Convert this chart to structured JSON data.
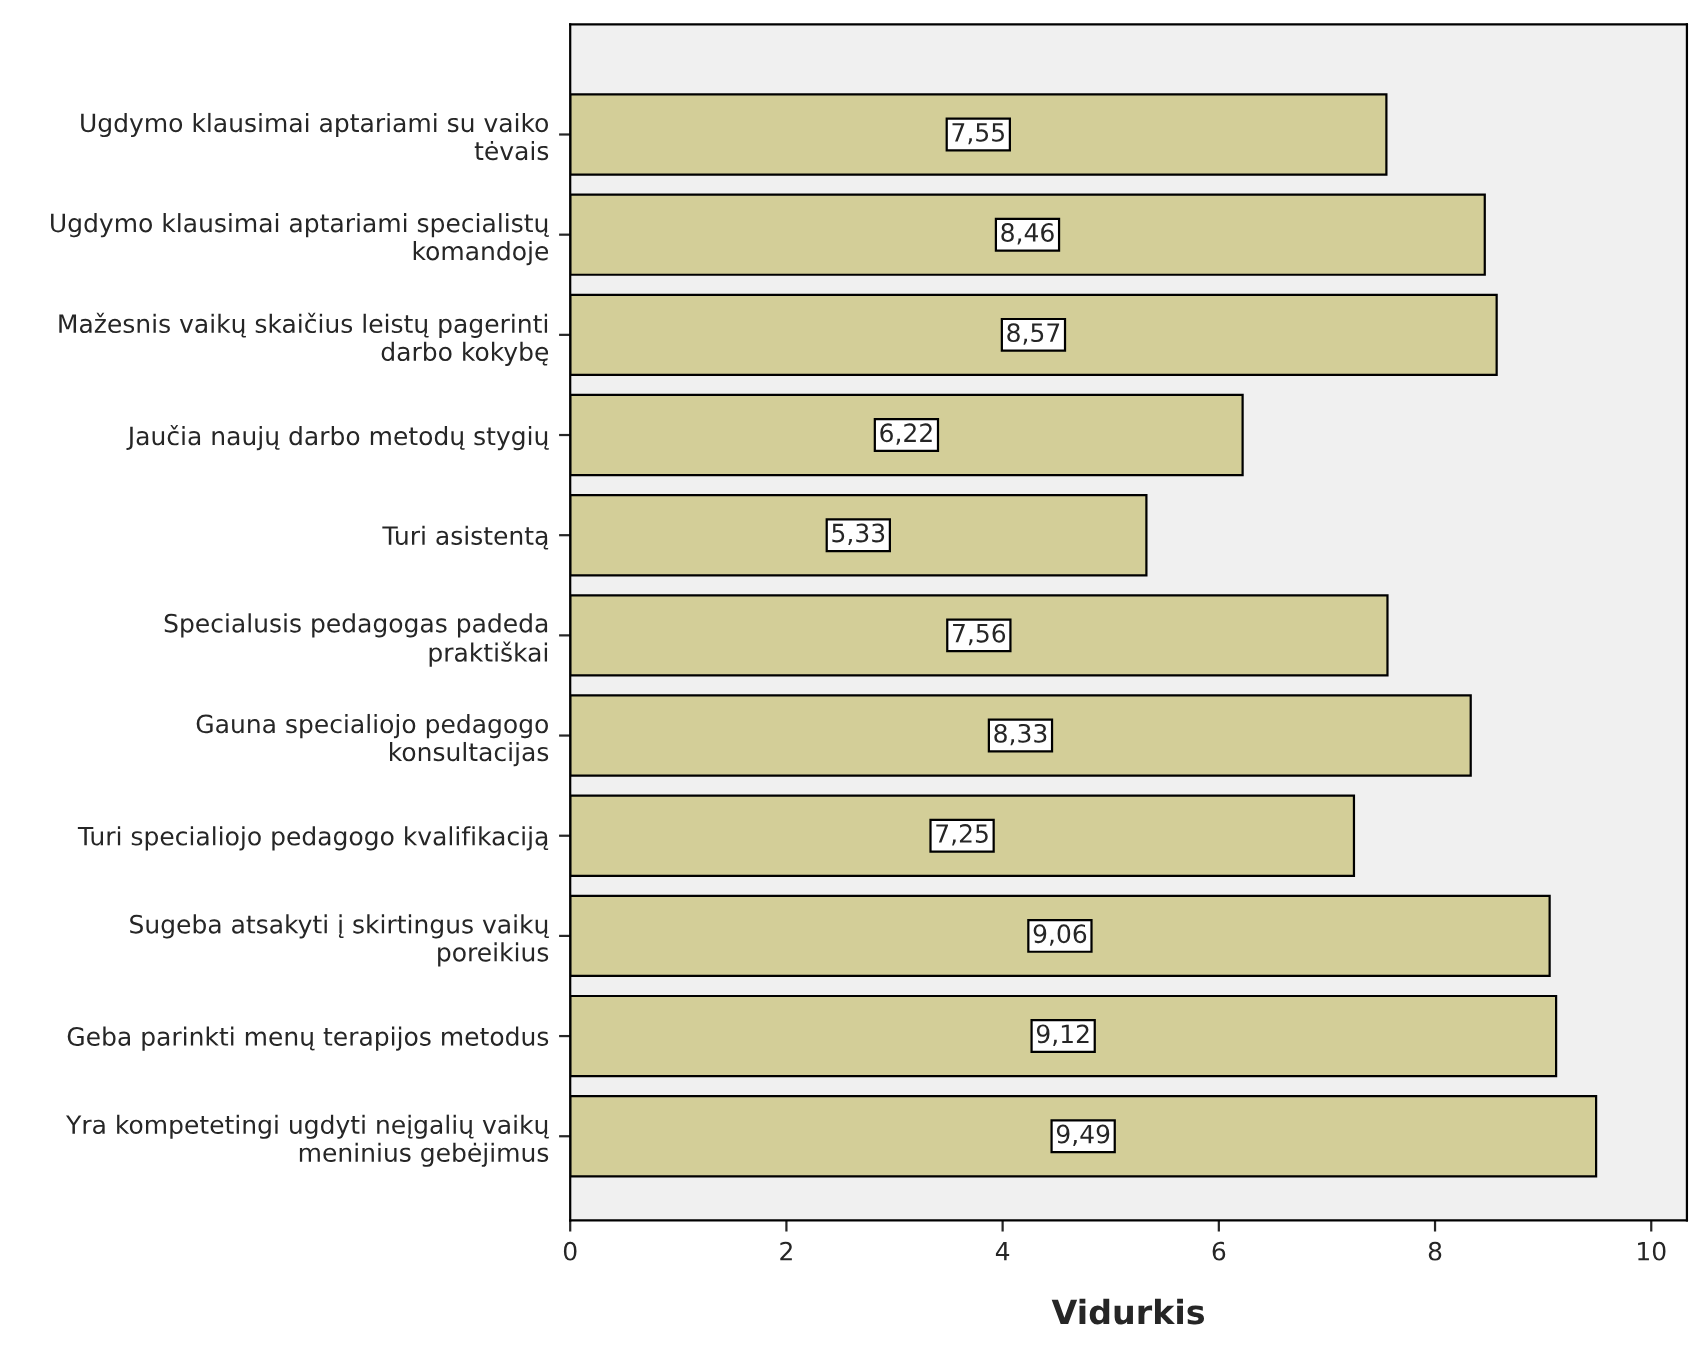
{
  "chart_data": {
    "type": "bar",
    "orientation": "horizontal",
    "xlabel": "Vidurkis",
    "categories": [
      "Ugdymo klausimai aptariami su vaiko\ntėvais",
      "Ugdymo klausimai aptariami specialistų\nkomandoje",
      "Mažesnis vaikų skaičius leistų pagerinti\ndarbo kokybę",
      "Jaučia naujų darbo metodų stygių",
      "Turi asistentą",
      "Specialusis pedagogas padeda\npraktiškai",
      "Gauna specialiojo pedagogo\nkonsultacijas",
      "Turi specialiojo pedagogo kvalifikaciją",
      "Sugeba atsakyti į skirtingus vaikų\nporeikius",
      "Geba parinkti menų terapijos metodus",
      "Yra kompetetingi ugdyti neįgalių vaikų\nmeninius gebėjimus"
    ],
    "values": [
      7.55,
      8.46,
      8.57,
      6.22,
      5.33,
      7.56,
      8.33,
      7.25,
      9.06,
      9.12,
      9.49
    ],
    "value_labels": [
      "7,55",
      "8,46",
      "8,57",
      "6,22",
      "5,33",
      "7,56",
      "8,33",
      "7,25",
      "9,06",
      "9,12",
      "9,49"
    ],
    "color": "#d3ce98",
    "xlim": [
      0,
      10.33
    ],
    "xticks": [
      0,
      2,
      4,
      6,
      8,
      10
    ],
    "grid": false,
    "legend": false
  }
}
